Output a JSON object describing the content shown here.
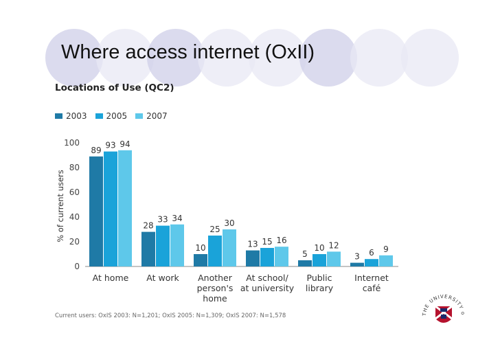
{
  "slide": {
    "title": "Where access internet (OxII)"
  },
  "chart_heading": "Locations of Use (QC2)",
  "footnote": "Current users: OxIS 2003: N=1,201; OxIS 2005: N=1,309; OxIS 2007: N=1,578",
  "logo": {
    "text": "THE UNIVERSITY of EDINBURGH",
    "icon": "university-crest-icon"
  },
  "colors": {
    "series_2003": "#1f7aa6",
    "series_2005": "#1aa3d9",
    "series_2007": "#5ec8ea",
    "decor_circle_fill": "#e8e8f4",
    "decor_circle_dark": "#cfcfe8"
  },
  "chart_data": {
    "type": "bar",
    "title": "Locations of Use (QC2)",
    "ylabel": "% of current users",
    "xlabel": "",
    "ylim": [
      0,
      100
    ],
    "yticks": [
      0,
      20,
      40,
      60,
      80,
      100
    ],
    "grid": false,
    "legend_position": "top-left",
    "categories": [
      [
        "At home"
      ],
      [
        "At work"
      ],
      [
        "Another",
        "person's",
        "home"
      ],
      [
        "At school/",
        "at university"
      ],
      [
        "Public",
        "library"
      ],
      [
        "Internet",
        "café"
      ]
    ],
    "series": [
      {
        "name": "2003",
        "values": [
          89,
          28,
          10,
          13,
          5,
          3
        ]
      },
      {
        "name": "2005",
        "values": [
          93,
          33,
          25,
          15,
          10,
          6
        ]
      },
      {
        "name": "2007",
        "values": [
          94,
          34,
          30,
          16,
          12,
          9
        ]
      }
    ]
  }
}
